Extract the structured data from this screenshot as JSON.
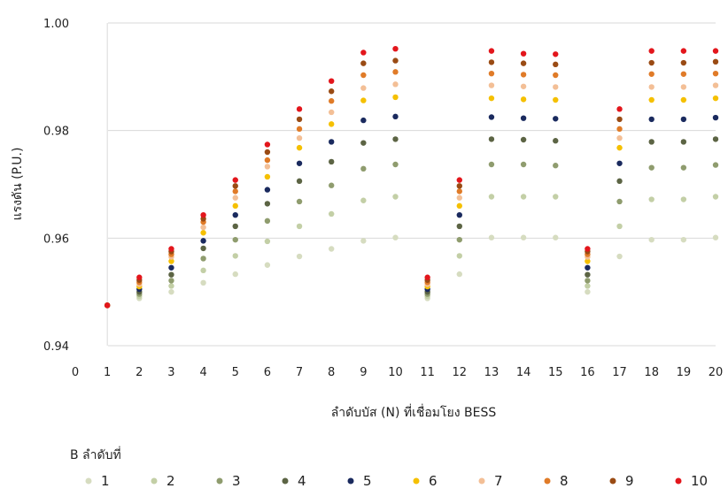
{
  "chart_data": {
    "type": "scatter",
    "xlabel": "ลำดับบัส (N) ที่เชื่อมโยง BESS",
    "ylabel": "แรงดัน (P.U.)",
    "xlim": [
      0,
      20
    ],
    "ylim": [
      0.94,
      1.0
    ],
    "x_ticks": [
      0,
      1,
      2,
      3,
      4,
      5,
      6,
      7,
      8,
      9,
      10,
      11,
      12,
      13,
      14,
      15,
      16,
      17,
      18,
      19,
      20
    ],
    "y_ticks": [
      0.94,
      0.96,
      0.98,
      1.0
    ],
    "y_tick_labels": [
      "0.94",
      "0.96",
      "0.98",
      "1.00"
    ],
    "grid": "horizontal",
    "legend_title": "B ลำดับที่",
    "legend_position": "bottom",
    "x": [
      1,
      2,
      3,
      4,
      5,
      6,
      7,
      8,
      9,
      10,
      11,
      12,
      13,
      14,
      15,
      16,
      17,
      18,
      19,
      20
    ],
    "series": [
      {
        "name": "1",
        "color": "#d6dcc0",
        "values": [
          0.9475,
          0.9488,
          0.95,
          0.9517,
          0.9533,
          0.955,
          0.9566,
          0.958,
          0.9595,
          0.9601,
          0.9488,
          0.9533,
          0.9601,
          0.9601,
          0.9601,
          0.95,
          0.9566,
          0.9597,
          0.9597,
          0.9601
        ]
      },
      {
        "name": "2",
        "color": "#c3cfa6",
        "values": [
          0.9475,
          0.9492,
          0.9511,
          0.954,
          0.9567,
          0.9594,
          0.9622,
          0.9645,
          0.967,
          0.9677,
          0.9492,
          0.9567,
          0.9677,
          0.9677,
          0.9677,
          0.9511,
          0.9622,
          0.9672,
          0.9672,
          0.9677
        ]
      },
      {
        "name": "3",
        "color": "#8f9c6e",
        "values": [
          0.9475,
          0.9496,
          0.9521,
          0.9562,
          0.9597,
          0.9632,
          0.9668,
          0.9698,
          0.9729,
          0.9737,
          0.9496,
          0.9597,
          0.9737,
          0.9737,
          0.9735,
          0.9521,
          0.9668,
          0.9731,
          0.9731,
          0.9736
        ]
      },
      {
        "name": "4",
        "color": "#5c6444",
        "values": [
          0.9475,
          0.95,
          0.9532,
          0.9581,
          0.9622,
          0.9664,
          0.9706,
          0.9742,
          0.9777,
          0.9784,
          0.95,
          0.9622,
          0.9784,
          0.9783,
          0.9781,
          0.9532,
          0.9706,
          0.9779,
          0.9779,
          0.9784
        ]
      },
      {
        "name": "5",
        "color": "#1a2a5e",
        "values": [
          0.9475,
          0.9505,
          0.9545,
          0.9595,
          0.9643,
          0.969,
          0.9739,
          0.9779,
          0.9819,
          0.9826,
          0.9505,
          0.9643,
          0.9825,
          0.9823,
          0.9822,
          0.9545,
          0.9739,
          0.9821,
          0.9821,
          0.9824
        ]
      },
      {
        "name": "6",
        "color": "#f5c000",
        "values": [
          0.9475,
          0.951,
          0.9557,
          0.961,
          0.966,
          0.9714,
          0.9768,
          0.9812,
          0.9856,
          0.9862,
          0.951,
          0.966,
          0.986,
          0.9858,
          0.9857,
          0.9557,
          0.9768,
          0.9857,
          0.9857,
          0.986
        ]
      },
      {
        "name": "7",
        "color": "#f3bf96",
        "values": [
          0.9475,
          0.9514,
          0.9565,
          0.962,
          0.9675,
          0.9733,
          0.9786,
          0.9834,
          0.9879,
          0.9886,
          0.9514,
          0.9675,
          0.9884,
          0.9882,
          0.9881,
          0.9565,
          0.9786,
          0.9881,
          0.9881,
          0.9884
        ]
      },
      {
        "name": "8",
        "color": "#e07b28",
        "values": [
          0.9475,
          0.9518,
          0.957,
          0.963,
          0.9687,
          0.9745,
          0.9803,
          0.9855,
          0.9903,
          0.9909,
          0.9518,
          0.9687,
          0.9906,
          0.9904,
          0.9903,
          0.957,
          0.9803,
          0.9905,
          0.9905,
          0.9906
        ]
      },
      {
        "name": "9",
        "color": "#9a4b14",
        "values": [
          0.9475,
          0.9522,
          0.9575,
          0.9636,
          0.9697,
          0.976,
          0.9821,
          0.9873,
          0.9925,
          0.993,
          0.9522,
          0.9697,
          0.9927,
          0.9925,
          0.9923,
          0.9575,
          0.9821,
          0.9926,
          0.9926,
          0.9928
        ]
      },
      {
        "name": "10",
        "color": "#e3161c",
        "values": [
          0.9475,
          0.9527,
          0.958,
          0.9643,
          0.9708,
          0.9774,
          0.984,
          0.9892,
          0.9945,
          0.9952,
          0.9527,
          0.9708,
          0.9948,
          0.9943,
          0.9942,
          0.958,
          0.984,
          0.9948,
          0.9948,
          0.9948
        ]
      }
    ]
  }
}
